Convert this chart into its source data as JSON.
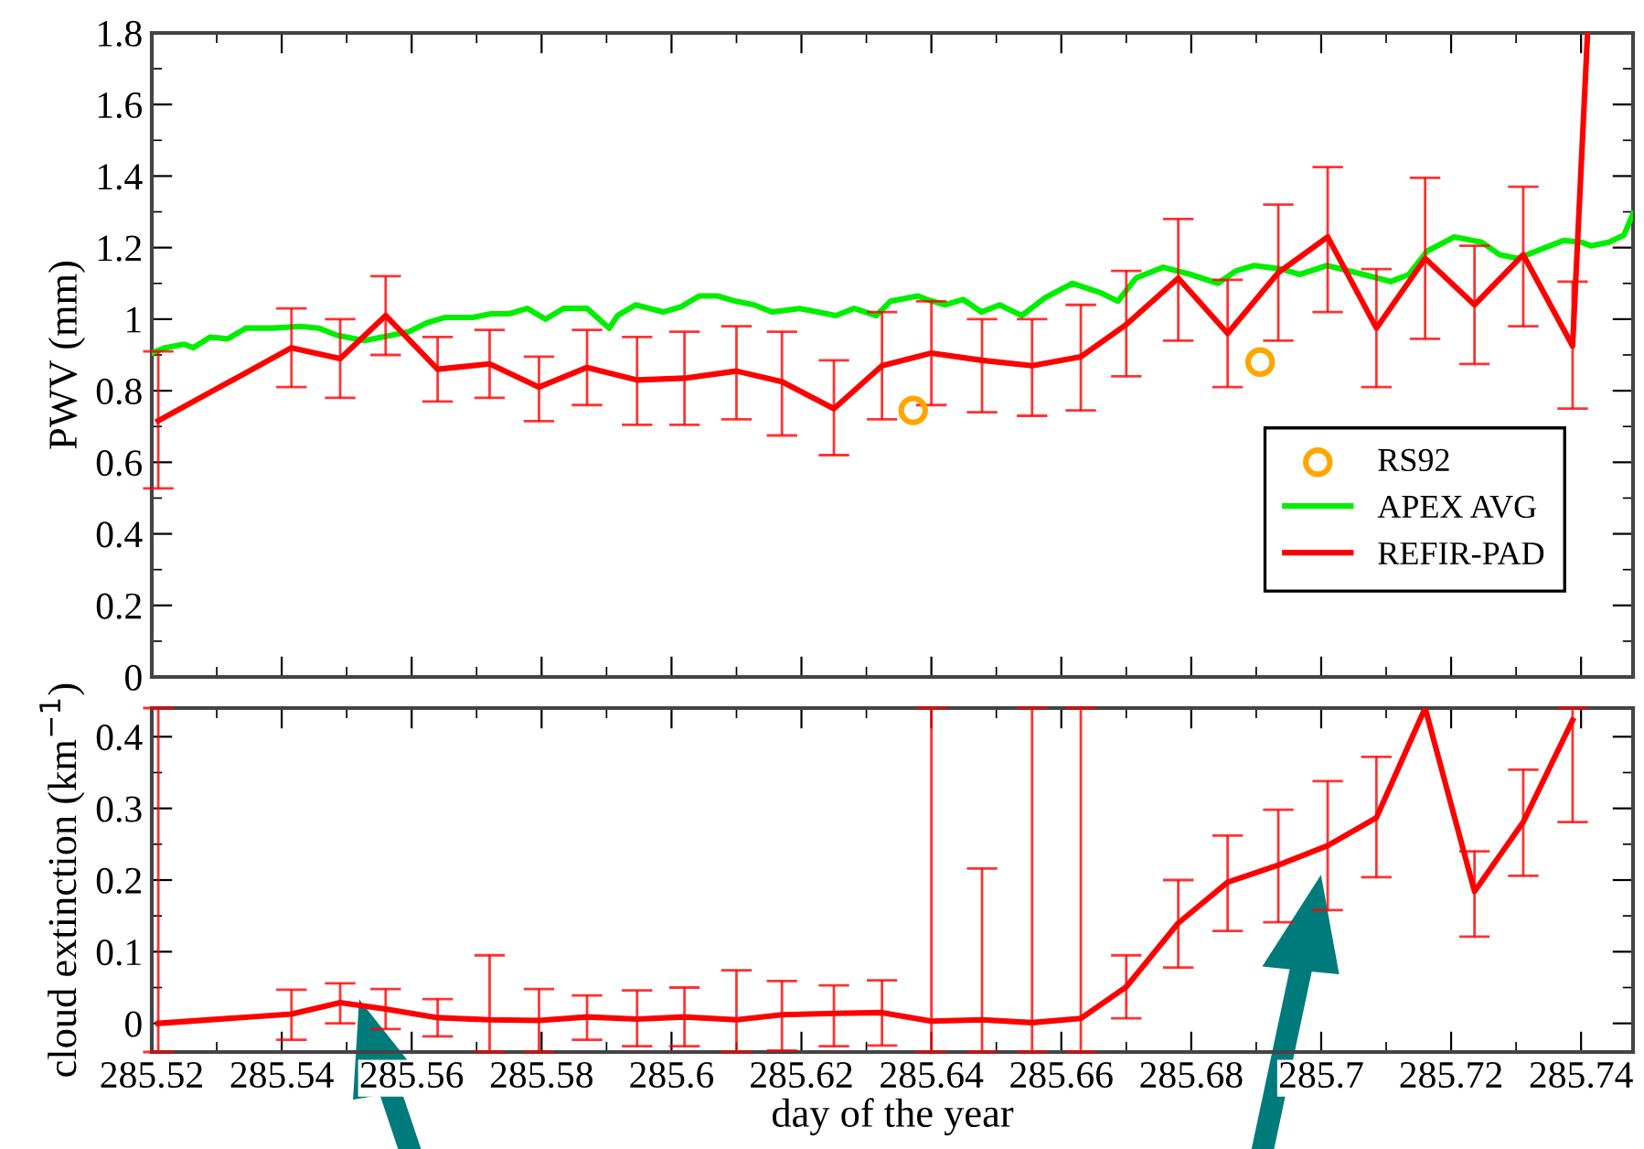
{
  "chart_data": [
    {
      "type": "line",
      "ylabel": "PWV (mm)",
      "xlim": [
        285.52,
        285.748
      ],
      "ylim": [
        0,
        1.8
      ],
      "xticks": [
        285.52,
        285.54,
        285.56,
        285.58,
        285.6,
        285.62,
        285.64,
        285.66,
        285.68,
        285.7,
        285.72,
        285.74
      ],
      "yticks": [
        0,
        0.2,
        0.4,
        0.6,
        0.8,
        1,
        1.2,
        1.4,
        1.6,
        1.8
      ],
      "tick_labels": "y",
      "grid": false,
      "legend": "right",
      "series": [
        {
          "name": "RS92",
          "type": "scatter",
          "marker": "circle",
          "color": "#ffa500",
          "x": [
            285.6372,
            285.6906
          ],
          "values": [
            0.745,
            0.88
          ]
        },
        {
          "name": "APEX AVG",
          "color": "#00ee00",
          "x": [
            285.52,
            285.522,
            285.525,
            285.5264,
            285.529,
            285.5317,
            285.5345,
            285.5387,
            285.5429,
            285.5457,
            285.5485,
            285.5527,
            285.5569,
            285.5596,
            285.5624,
            285.5652,
            285.5694,
            285.5722,
            285.575,
            285.5778,
            285.5806,
            285.5834,
            285.587,
            285.5904,
            285.5917,
            285.5945,
            285.5987,
            285.6015,
            285.6043,
            285.6071,
            285.6099,
            285.6127,
            285.6155,
            285.6197,
            285.6225,
            285.6253,
            285.6281,
            285.6315,
            285.6337,
            285.6379,
            285.6393,
            285.6421,
            285.6449,
            285.6477,
            285.6505,
            285.6539,
            285.6575,
            285.6617,
            285.6659,
            285.6687,
            285.6715,
            285.6757,
            285.6799,
            285.6841,
            285.6869,
            285.6897,
            285.6939,
            285.6967,
            285.7009,
            285.7065,
            285.7107,
            285.7135,
            285.7163,
            285.7205,
            285.7247,
            285.7275,
            285.7303,
            285.7345,
            285.7373,
            285.7401,
            285.7415,
            285.7443,
            285.7466,
            285.748
          ],
          "values": [
            0.905,
            0.92,
            0.93,
            0.92,
            0.95,
            0.945,
            0.975,
            0.975,
            0.98,
            0.975,
            0.955,
            0.94,
            0.955,
            0.965,
            0.99,
            1.005,
            1.005,
            1.015,
            1.015,
            1.03,
            1.0,
            1.03,
            1.03,
            0.975,
            1.01,
            1.04,
            1.02,
            1.035,
            1.065,
            1.065,
            1.05,
            1.04,
            1.02,
            1.03,
            1.02,
            1.01,
            1.03,
            1.01,
            1.05,
            1.065,
            1.055,
            1.04,
            1.055,
            1.02,
            1.04,
            1.01,
            1.06,
            1.1,
            1.075,
            1.05,
            1.115,
            1.145,
            1.125,
            1.1,
            1.135,
            1.15,
            1.14,
            1.125,
            1.15,
            1.125,
            1.105,
            1.125,
            1.19,
            1.23,
            1.215,
            1.18,
            1.17,
            1.2,
            1.22,
            1.215,
            1.205,
            1.215,
            1.235,
            1.295
          ]
        },
        {
          "name": "REFIR-PAD",
          "color": "#ff0000",
          "x": [
            285.521,
            285.5415,
            285.549,
            285.556,
            285.564,
            285.572,
            285.5796,
            285.587,
            285.5947,
            285.602,
            285.61,
            285.617,
            285.625,
            285.6324,
            285.64,
            285.6478,
            285.6555,
            285.663,
            285.67,
            285.678,
            285.6856,
            285.6934,
            285.701,
            285.7085,
            285.716,
            285.7236,
            285.7311,
            285.7387,
            285.741
          ],
          "values": [
            0.716,
            0.92,
            0.89,
            1.01,
            0.86,
            0.875,
            0.81,
            0.865,
            0.83,
            0.835,
            0.855,
            0.825,
            0.75,
            0.87,
            0.905,
            0.885,
            0.87,
            0.895,
            0.985,
            1.115,
            0.96,
            1.13,
            1.23,
            0.975,
            1.17,
            1.04,
            1.18,
            0.925,
            1.8
          ],
          "errors": [
            [
              0.527,
              0.91
            ],
            [
              0.81,
              1.03
            ],
            [
              0.78,
              1.0
            ],
            [
              0.9,
              1.12
            ],
            [
              0.77,
              0.95
            ],
            [
              0.78,
              0.97
            ],
            [
              0.715,
              0.895
            ],
            [
              0.76,
              0.97
            ],
            [
              0.705,
              0.95
            ],
            [
              0.705,
              0.965
            ],
            [
              0.72,
              0.98
            ],
            [
              0.675,
              0.965
            ],
            [
              0.62,
              0.885
            ],
            [
              0.72,
              1.02
            ],
            [
              0.76,
              1.05
            ],
            [
              0.74,
              1.0
            ],
            [
              0.73,
              1.0
            ],
            [
              0.745,
              1.04
            ],
            [
              0.84,
              1.135
            ],
            [
              0.94,
              1.28
            ],
            [
              0.81,
              1.11
            ],
            [
              0.94,
              1.32
            ],
            [
              1.02,
              1.425
            ],
            [
              0.81,
              1.14
            ],
            [
              0.945,
              1.395
            ],
            [
              0.875,
              1.205
            ],
            [
              0.98,
              1.37
            ],
            [
              0.75,
              1.105
            ],
            null
          ]
        }
      ]
    },
    {
      "type": "line",
      "xlabel": "day of the year",
      "ylabel": "cloud extinction (km$^{−1}$)",
      "xlim": [
        285.52,
        285.748
      ],
      "ylim": [
        -0.04,
        0.44
      ],
      "xticks": [
        285.52,
        285.54,
        285.56,
        285.58,
        285.6,
        285.62,
        285.64,
        285.66,
        285.68,
        285.7,
        285.72,
        285.74
      ],
      "yticks": [
        0,
        0.1,
        0.2,
        0.3,
        0.4
      ],
      "grid": false,
      "series": [
        {
          "color": "#ff0000",
          "x": [
            285.521,
            285.5415,
            285.549,
            285.556,
            285.564,
            285.572,
            285.5796,
            285.587,
            285.5947,
            285.602,
            285.61,
            285.617,
            285.625,
            285.6324,
            285.64,
            285.6478,
            285.6555,
            285.663,
            285.67,
            285.678,
            285.6856,
            285.6934,
            285.701,
            285.7085,
            285.716,
            285.7236,
            285.7311,
            285.7387
          ],
          "values": [
            0.0,
            0.013,
            0.029,
            0.02,
            0.008,
            0.005,
            0.004,
            0.009,
            0.006,
            0.009,
            0.005,
            0.012,
            0.014,
            0.015,
            0.003,
            0.005,
            0.001,
            0.007,
            0.051,
            0.14,
            0.197,
            0.221,
            0.248,
            0.287,
            0.44,
            0.184,
            0.281,
            0.423
          ],
          "errors": [
            [
              -0.04,
              0.44
            ],
            [
              -0.023,
              0.047
            ],
            [
              0.0,
              0.056
            ],
            [
              -0.008,
              0.048
            ],
            [
              -0.018,
              0.034
            ],
            [
              -0.04,
              0.095
            ],
            [
              -0.04,
              0.048
            ],
            [
              -0.023,
              0.039
            ],
            [
              -0.032,
              0.046
            ],
            [
              -0.032,
              0.05
            ],
            [
              -0.04,
              0.074
            ],
            [
              -0.038,
              0.059
            ],
            [
              -0.032,
              0.053
            ],
            [
              -0.031,
              0.06
            ],
            [
              -0.04,
              0.44
            ],
            [
              -0.04,
              0.216
            ],
            [
              -0.04,
              0.44
            ],
            [
              -0.04,
              0.44
            ],
            [
              0.007,
              0.095
            ],
            [
              0.078,
              0.2
            ],
            [
              0.129,
              0.262
            ],
            [
              0.141,
              0.298
            ],
            [
              0.158,
              0.338
            ],
            [
              0.204,
              0.372
            ],
            null,
            [
              0.121,
              0.24
            ],
            [
              0.206,
              0.354
            ],
            [
              0.281,
              0.44
            ]
          ]
        }
      ]
    }
  ]
}
